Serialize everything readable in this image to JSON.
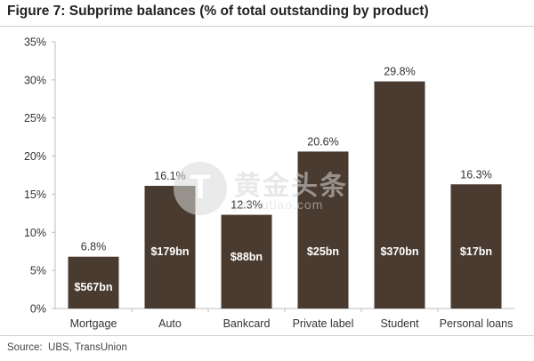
{
  "title": "Figure 7: Subprime balances (% of total outstanding by product)",
  "source": "Source:  UBS, TransUnion",
  "watermark": {
    "icon": "t-logo-icon",
    "cn": "黄金头条",
    "url": "jintoutiao.com"
  },
  "colors": {
    "bar": "#4a3b30",
    "axis": "#bdbdbd",
    "label": "#333333",
    "inner_label": "#ffffff"
  },
  "chart_data": {
    "type": "bar",
    "title": "Figure 7: Subprime balances (% of total outstanding by product)",
    "xlabel": "",
    "ylabel": "",
    "ylim": [
      0,
      35
    ],
    "yticks": [
      0,
      5,
      10,
      15,
      20,
      25,
      30,
      35
    ],
    "ytick_labels": [
      "0%",
      "5%",
      "10%",
      "15%",
      "20%",
      "25%",
      "30%",
      "35%"
    ],
    "grid": false,
    "categories": [
      "Mortgage",
      "Auto",
      "Bankcard",
      "Private label",
      "Student",
      "Personal loans"
    ],
    "values": [
      6.8,
      16.1,
      12.3,
      20.6,
      29.8,
      16.3
    ],
    "value_labels": [
      "6.8%",
      "16.1%",
      "12.3%",
      "20.6%",
      "29.8%",
      "16.3%"
    ],
    "balance_labels": [
      "$567bn",
      "$179bn",
      "$88bn",
      "$25bn",
      "$370bn",
      "$17bn"
    ]
  }
}
